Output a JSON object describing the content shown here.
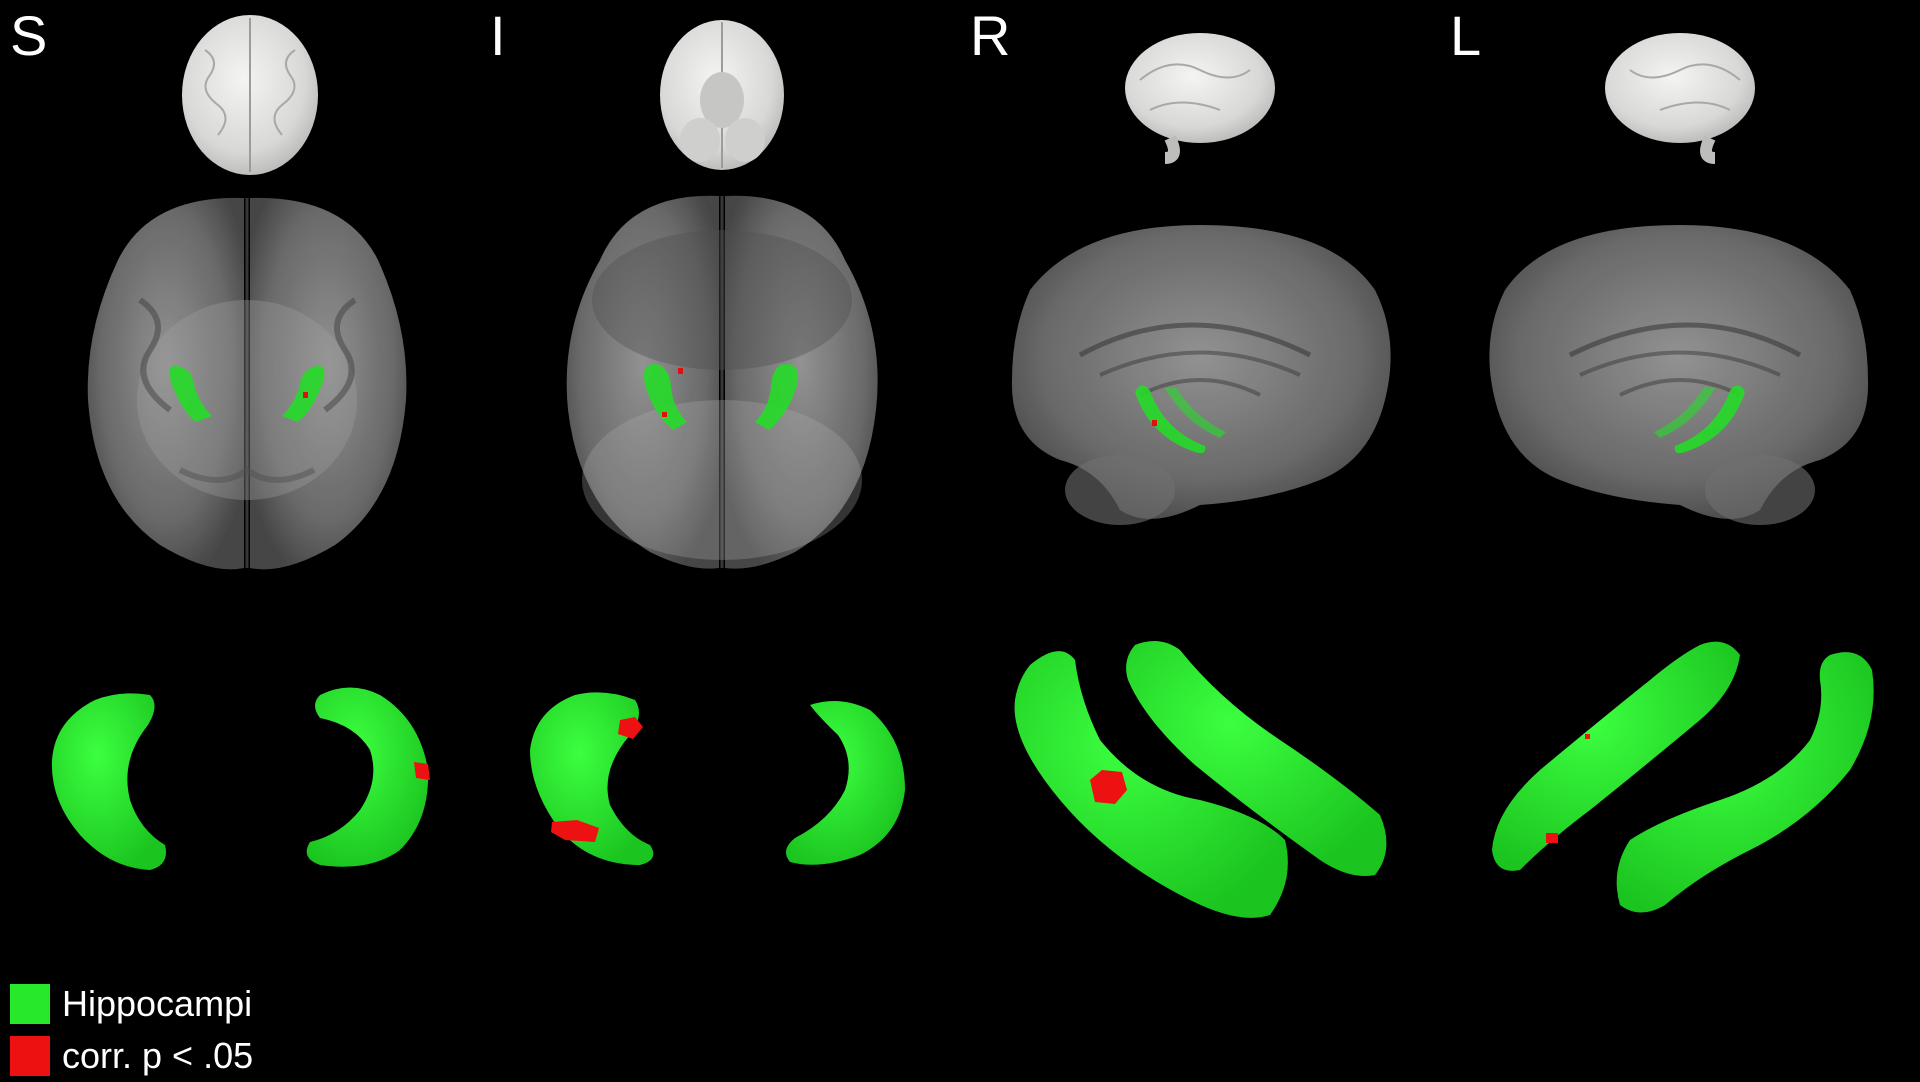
{
  "views": [
    {
      "id": "superior",
      "label": "S"
    },
    {
      "id": "inferior",
      "label": "I"
    },
    {
      "id": "right",
      "label": "R"
    },
    {
      "id": "left",
      "label": "L"
    }
  ],
  "legend": {
    "items": [
      {
        "label": "Hippocampi",
        "color": "#27e82b"
      },
      {
        "label": "corr. p < .05",
        "color": "#ee1111"
      }
    ]
  },
  "colors": {
    "background": "#000000",
    "brain_solid": "#e6e6e4",
    "brain_transparent": "#8a8a8a",
    "hippocampus": "#27e82b",
    "significant": "#ee1111"
  }
}
